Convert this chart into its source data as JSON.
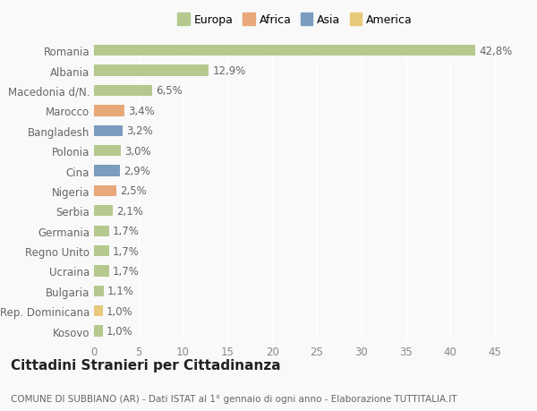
{
  "categories": [
    "Kosovo",
    "Rep. Dominicana",
    "Bulgaria",
    "Ucraina",
    "Regno Unito",
    "Germania",
    "Serbia",
    "Nigeria",
    "Cina",
    "Polonia",
    "Bangladesh",
    "Marocco",
    "Macedonia d/N.",
    "Albania",
    "Romania"
  ],
  "values": [
    1.0,
    1.0,
    1.1,
    1.7,
    1.7,
    1.7,
    2.1,
    2.5,
    2.9,
    3.0,
    3.2,
    3.4,
    6.5,
    12.9,
    42.8
  ],
  "colors": [
    "#b5c98e",
    "#e8c97a",
    "#b5c98e",
    "#b5c98e",
    "#b5c98e",
    "#b5c98e",
    "#b5c98e",
    "#e8a87a",
    "#7a9cbf",
    "#b5c98e",
    "#7a9cbf",
    "#e8a87a",
    "#b5c98e",
    "#b5c98e",
    "#b5c98e"
  ],
  "labels": [
    "1,0%",
    "1,0%",
    "1,1%",
    "1,7%",
    "1,7%",
    "1,7%",
    "2,1%",
    "2,5%",
    "2,9%",
    "3,0%",
    "3,2%",
    "3,4%",
    "6,5%",
    "12,9%",
    "42,8%"
  ],
  "legend_labels": [
    "Europa",
    "Africa",
    "Asia",
    "America"
  ],
  "legend_colors": [
    "#b5c98e",
    "#e8a87a",
    "#7a9cbf",
    "#e8c97a"
  ],
  "title": "Cittadini Stranieri per Cittadinanza",
  "subtitle": "COMUNE DI SUBBIANO (AR) - Dati ISTAT al 1° gennaio di ogni anno - Elaborazione TUTTITALIA.IT",
  "xlim": [
    0,
    47
  ],
  "xticks": [
    0,
    5,
    10,
    15,
    20,
    25,
    30,
    35,
    40,
    45
  ],
  "background_color": "#f9f9f9",
  "bar_height": 0.55,
  "grid_color": "#ffffff",
  "label_fontsize": 8.5,
  "title_fontsize": 11,
  "subtitle_fontsize": 7.5,
  "tick_fontsize": 8.5
}
